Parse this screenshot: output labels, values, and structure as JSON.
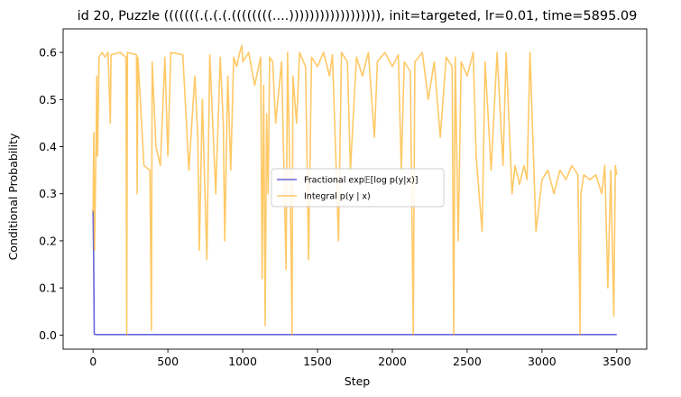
{
  "chart_data": {
    "type": "line",
    "title": "id 20, Puzzle (((((((.(.(.(.((((((((....)))))))))))))))))), init=targeted, lr=0.01, time=5895.09",
    "xlabel": "Step",
    "ylabel": "Conditional Probability",
    "xlim": [
      -200,
      3700
    ],
    "ylim": [
      -0.03,
      0.65
    ],
    "x_ticks": [
      0,
      500,
      1000,
      1500,
      2000,
      2500,
      3000,
      3500
    ],
    "x_tick_labels": [
      "0",
      "500",
      "1000",
      "1500",
      "2000",
      "2500",
      "3000",
      "3500"
    ],
    "y_ticks": [
      0.0,
      0.1,
      0.2,
      0.3,
      0.4,
      0.5,
      0.6
    ],
    "y_tick_labels": [
      "0.0",
      "0.1",
      "0.2",
      "0.3",
      "0.4",
      "0.5",
      "0.6"
    ],
    "grid": false,
    "legend": {
      "placement": "center-right"
    },
    "series": [
      {
        "name": "Fractional exp𝔼[log p(y|x)]",
        "color": "#0000cc",
        "alpha": 0.6,
        "points": [
          [
            0,
            0.265
          ],
          [
            4,
            0.17
          ],
          [
            8,
            0.002
          ],
          [
            20,
            0.001
          ],
          [
            500,
            0.001
          ],
          [
            1000,
            0.001
          ],
          [
            1500,
            0.001
          ],
          [
            2000,
            0.001
          ],
          [
            2500,
            0.001
          ],
          [
            3000,
            0.001
          ],
          [
            3500,
            0.001
          ]
        ]
      },
      {
        "name": "Integral p(y | x)",
        "color": "#ffa500",
        "alpha": 0.6,
        "points": [
          [
            0,
            0.26
          ],
          [
            5,
            0.43
          ],
          [
            10,
            0.18
          ],
          [
            15,
            0.3
          ],
          [
            20,
            0.4
          ],
          [
            25,
            0.55
          ],
          [
            30,
            0.38
          ],
          [
            40,
            0.59
          ],
          [
            60,
            0.6
          ],
          [
            80,
            0.59
          ],
          [
            100,
            0.6
          ],
          [
            115,
            0.45
          ],
          [
            120,
            0.595
          ],
          [
            180,
            0.6
          ],
          [
            220,
            0.59
          ],
          [
            225,
            0.001
          ],
          [
            230,
            0.6
          ],
          [
            290,
            0.595
          ],
          [
            295,
            0.3
          ],
          [
            300,
            0.59
          ],
          [
            340,
            0.36
          ],
          [
            380,
            0.35
          ],
          [
            390,
            0.01
          ],
          [
            395,
            0.58
          ],
          [
            420,
            0.4
          ],
          [
            450,
            0.36
          ],
          [
            480,
            0.59
          ],
          [
            500,
            0.38
          ],
          [
            520,
            0.6
          ],
          [
            600,
            0.595
          ],
          [
            640,
            0.35
          ],
          [
            680,
            0.55
          ],
          [
            700,
            0.42
          ],
          [
            710,
            0.18
          ],
          [
            730,
            0.5
          ],
          [
            760,
            0.16
          ],
          [
            780,
            0.595
          ],
          [
            820,
            0.3
          ],
          [
            850,
            0.59
          ],
          [
            870,
            0.45
          ],
          [
            880,
            0.2
          ],
          [
            900,
            0.55
          ],
          [
            920,
            0.35
          ],
          [
            940,
            0.59
          ],
          [
            960,
            0.57
          ],
          [
            980,
            0.6
          ],
          [
            995,
            0.615
          ],
          [
            1000,
            0.58
          ],
          [
            1040,
            0.6
          ],
          [
            1080,
            0.53
          ],
          [
            1120,
            0.59
          ],
          [
            1130,
            0.12
          ],
          [
            1140,
            0.53
          ],
          [
            1150,
            0.02
          ],
          [
            1160,
            0.47
          ],
          [
            1170,
            0.3
          ],
          [
            1180,
            0.59
          ],
          [
            1200,
            0.58
          ],
          [
            1220,
            0.45
          ],
          [
            1260,
            0.58
          ],
          [
            1290,
            0.14
          ],
          [
            1300,
            0.6
          ],
          [
            1320,
            0.25
          ],
          [
            1330,
            0.001
          ],
          [
            1335,
            0.55
          ],
          [
            1360,
            0.45
          ],
          [
            1380,
            0.6
          ],
          [
            1420,
            0.57
          ],
          [
            1440,
            0.16
          ],
          [
            1460,
            0.59
          ],
          [
            1500,
            0.57
          ],
          [
            1540,
            0.6
          ],
          [
            1580,
            0.55
          ],
          [
            1600,
            0.595
          ],
          [
            1640,
            0.2
          ],
          [
            1660,
            0.6
          ],
          [
            1700,
            0.58
          ],
          [
            1720,
            0.35
          ],
          [
            1760,
            0.59
          ],
          [
            1800,
            0.55
          ],
          [
            1840,
            0.6
          ],
          [
            1880,
            0.42
          ],
          [
            1900,
            0.58
          ],
          [
            1950,
            0.6
          ],
          [
            2000,
            0.57
          ],
          [
            2040,
            0.595
          ],
          [
            2060,
            0.35
          ],
          [
            2080,
            0.58
          ],
          [
            2120,
            0.56
          ],
          [
            2140,
            0.001
          ],
          [
            2150,
            0.58
          ],
          [
            2200,
            0.6
          ],
          [
            2240,
            0.5
          ],
          [
            2280,
            0.58
          ],
          [
            2320,
            0.42
          ],
          [
            2360,
            0.59
          ],
          [
            2400,
            0.57
          ],
          [
            2410,
            0.001
          ],
          [
            2420,
            0.59
          ],
          [
            2440,
            0.2
          ],
          [
            2460,
            0.58
          ],
          [
            2500,
            0.55
          ],
          [
            2540,
            0.6
          ],
          [
            2560,
            0.38
          ],
          [
            2600,
            0.22
          ],
          [
            2620,
            0.58
          ],
          [
            2660,
            0.35
          ],
          [
            2700,
            0.6
          ],
          [
            2740,
            0.36
          ],
          [
            2760,
            0.6
          ],
          [
            2800,
            0.3
          ],
          [
            2820,
            0.36
          ],
          [
            2850,
            0.32
          ],
          [
            2880,
            0.36
          ],
          [
            2900,
            0.33
          ],
          [
            2920,
            0.6
          ],
          [
            2960,
            0.22
          ],
          [
            3000,
            0.33
          ],
          [
            3040,
            0.35
          ],
          [
            3080,
            0.3
          ],
          [
            3120,
            0.35
          ],
          [
            3160,
            0.33
          ],
          [
            3200,
            0.36
          ],
          [
            3240,
            0.34
          ],
          [
            3255,
            0.001
          ],
          [
            3260,
            0.3
          ],
          [
            3280,
            0.34
          ],
          [
            3320,
            0.33
          ],
          [
            3360,
            0.34
          ],
          [
            3400,
            0.3
          ],
          [
            3420,
            0.36
          ],
          [
            3440,
            0.1
          ],
          [
            3460,
            0.35
          ],
          [
            3480,
            0.04
          ],
          [
            3490,
            0.36
          ],
          [
            3500,
            0.34
          ]
        ]
      }
    ]
  }
}
